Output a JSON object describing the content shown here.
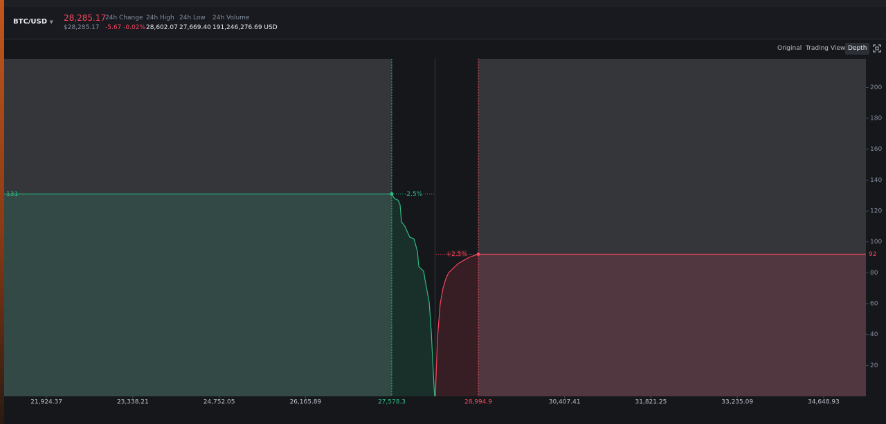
{
  "header": {
    "pair": "BTC/USD",
    "last_price": "28,285.17",
    "last_price_usd": "$28,285.17",
    "stats": [
      {
        "label": "24h Change",
        "value": "-5.67 -0.02%"
      },
      {
        "label": "24h High",
        "value": "28,602.07"
      },
      {
        "label": "24h Low",
        "value": "27,669.40"
      },
      {
        "label": "24h Volume",
        "value": "191,246,276.69 USD"
      }
    ]
  },
  "toolbar": {
    "views": [
      "Original",
      "Trading View",
      "Depth"
    ],
    "active": 2
  },
  "chart_data": {
    "type": "depth",
    "xlim": [
      21232,
      35341
    ],
    "ylim": [
      0,
      218.5
    ],
    "xticks": [
      {
        "value": 21924.37,
        "label": "21,924.37"
      },
      {
        "value": 23338.21,
        "label": "23,338.21"
      },
      {
        "value": 24752.05,
        "label": "24,752.05"
      },
      {
        "value": 26165.89,
        "label": "26,165.89"
      },
      {
        "value": 30407.41,
        "label": "30,407.41"
      },
      {
        "value": 31821.25,
        "label": "31,821.25"
      },
      {
        "value": 33235.09,
        "label": "33,235.09"
      },
      {
        "value": 34648.93,
        "label": "34,648.93"
      }
    ],
    "yticks": [
      20,
      40,
      60,
      80,
      100,
      120,
      140,
      160,
      180,
      200
    ],
    "series": [
      {
        "color": "#2ebd85",
        "x": [
          27578.3,
          27623.6,
          27680.3,
          27714.3,
          27737,
          27793.6,
          27850.3,
          27873,
          27941,
          27997.6,
          28020.3,
          28099.6,
          28133.6,
          28190.3,
          28224.3,
          28247,
          28269.7,
          28281
        ],
        "values": [
          131,
          128,
          127,
          124,
          113,
          110,
          105,
          103,
          102,
          94,
          84,
          81,
          73,
          61,
          42,
          24,
          6,
          0
        ]
      },
      {
        "color": "#f6465d",
        "x": [
          28292.3,
          28326.3,
          28371.7,
          28417,
          28462.3,
          28507.6,
          28587,
          28666.3,
          28757,
          28847.6,
          28915.6,
          28994.9
        ],
        "values": [
          0,
          38,
          60,
          70,
          76,
          80,
          83,
          86,
          88,
          90,
          91,
          92
        ]
      }
    ],
    "range_markers": [
      {
        "x": {
          "value": 27578.3,
          "label": "27,578.3"
        },
        "label": "-2.5%",
        "color": "#2ebd85"
      },
      {
        "x": {
          "value": 28994.9,
          "label": "28,994.9"
        },
        "label": "+2.5%",
        "color": "#f6465d"
      }
    ]
  }
}
